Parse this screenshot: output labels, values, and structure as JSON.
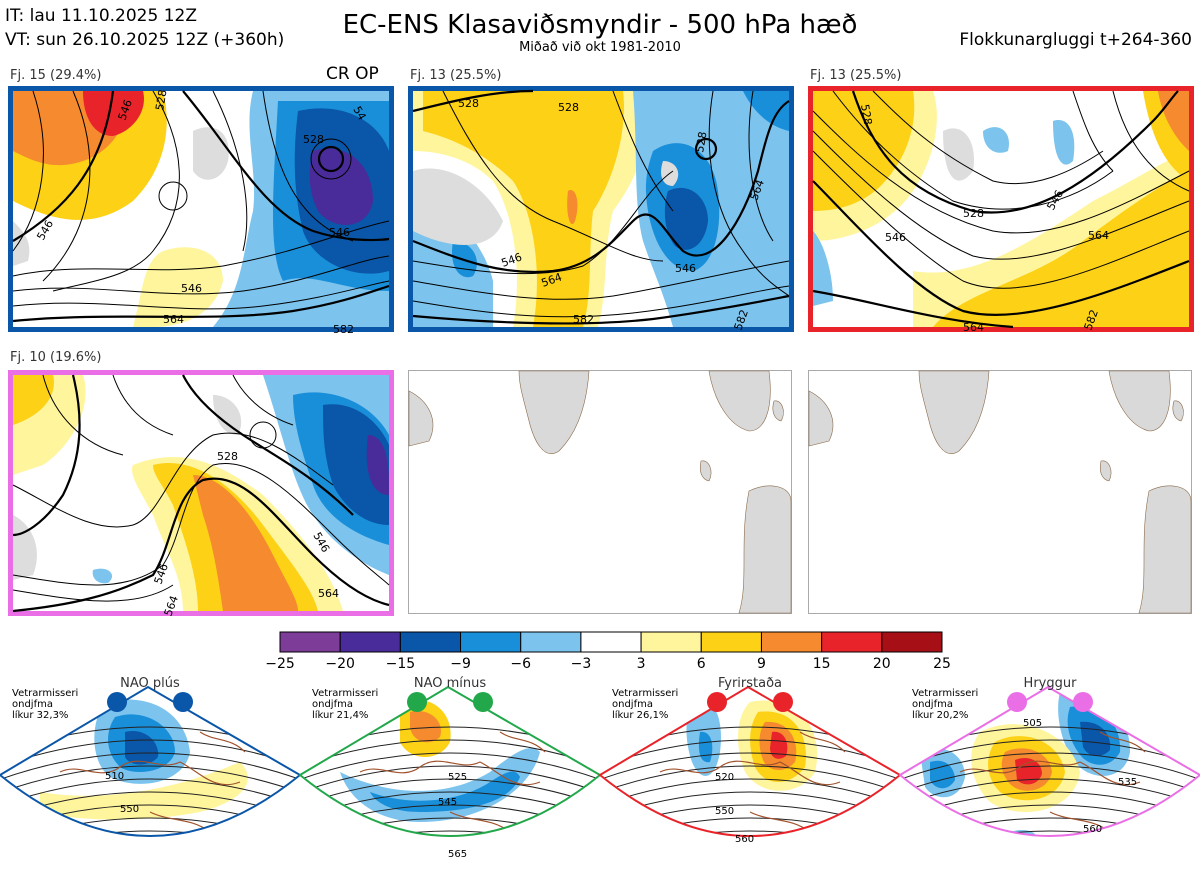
{
  "header": {
    "it_line": "IT: lau 11.10.2025 12Z",
    "vt_line": "VT: sun 26.10.2025 12Z  (+360h)",
    "title": "EC-ENS Klasaviðsmyndir - 500 hPa hæð",
    "subtitle": "Miðað við okt 1981-2010",
    "window": "Flokkunargluggi t+264-360"
  },
  "panels": [
    {
      "label": "Fj. 15 (29.4%)",
      "tag": "CR OP",
      "border_color": "#0a56a8",
      "contours": [
        "546",
        "528",
        "546",
        "546",
        "564",
        "546",
        "528",
        "54",
        "582"
      ]
    },
    {
      "label": "Fj. 13 (25.5%)",
      "tag": "",
      "border_color": "#0a56a8",
      "contours": [
        "528",
        "528",
        "546",
        "564",
        "546",
        "582",
        "528",
        "564",
        "582"
      ]
    },
    {
      "label": "Fj. 13 (25.5%)",
      "tag": "",
      "border_color": "#e8242a",
      "contours": [
        "528",
        "546",
        "528",
        "546",
        "564",
        "564",
        "582"
      ]
    },
    {
      "label": "Fj. 10 (19.6%)",
      "tag": "",
      "border_color": "#ea6fe6",
      "contours": [
        "528",
        "546",
        "564",
        "546",
        "564"
      ]
    }
  ],
  "colorbar": {
    "ticks": [
      "−25",
      "−20",
      "−15",
      "−9",
      "−6",
      "−3",
      "3",
      "6",
      "9",
      "15",
      "20",
      "25"
    ],
    "colors": [
      "#7d3c98",
      "#4a2b9a",
      "#0a56a8",
      "#1a8fd9",
      "#7cc3ee",
      "#ffffff",
      "#fff59d",
      "#fcd116",
      "#f58a2e",
      "#e8242a",
      "#a50f15"
    ]
  },
  "climates": [
    {
      "name": "NAO plús",
      "text": [
        "Vetrarmisseri",
        "ondjfma",
        "líkur 32,3%"
      ],
      "color": "#0a56a8",
      "contours": [
        "510",
        "550"
      ]
    },
    {
      "name": "NAO mínus",
      "text": [
        "Vetrarmisseri",
        "ondjfma",
        "líkur 21,4%"
      ],
      "color": "#22a84a",
      "contours": [
        "525",
        "545",
        "565"
      ]
    },
    {
      "name": "Fyrirstaða",
      "text": [
        "Vetrarmisseri",
        "ondjfma",
        "líkur 26,1%"
      ],
      "color": "#e8242a",
      "contours": [
        "520",
        "550",
        "560"
      ]
    },
    {
      "name": "Hryggur",
      "text": [
        "Vetrarmisseri",
        "ondjfma",
        "líkur 20,2%"
      ],
      "color": "#ea6fe6",
      "contours": [
        "505",
        "535",
        "560"
      ]
    }
  ]
}
